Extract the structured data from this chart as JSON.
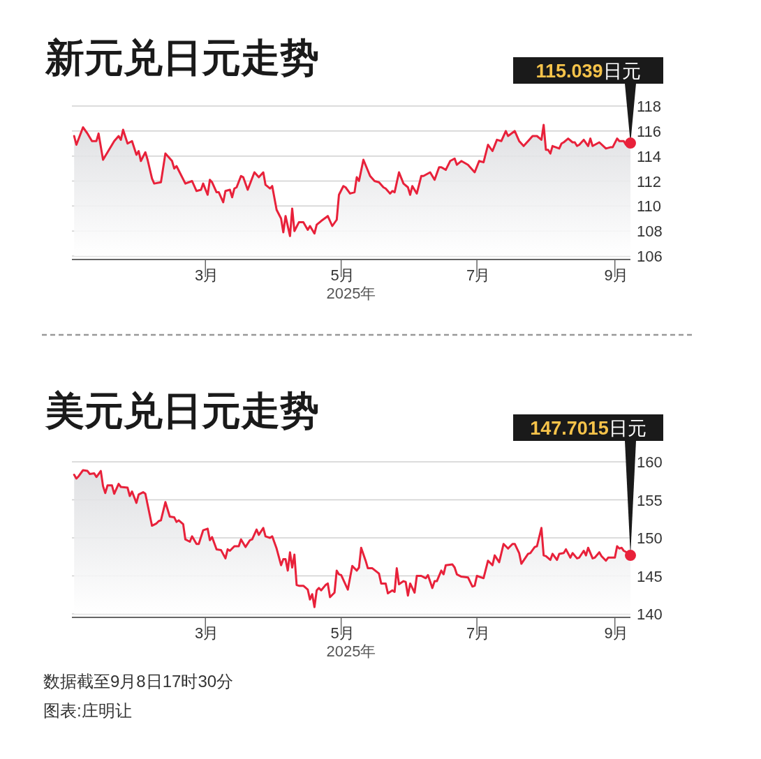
{
  "chart_data": [
    {
      "type": "area",
      "title": "新元兑日元走势",
      "xlabel": "2025年",
      "xlim": [
        "2024-12-31",
        "2025-09-08"
      ],
      "xticks": [
        {
          "value": "2025-03-01",
          "label": "3月"
        },
        {
          "value": "2025-05-01",
          "label": "5月"
        },
        {
          "value": "2025-07-01",
          "label": "7月"
        },
        {
          "value": "2025-09-01",
          "label": "9月"
        }
      ],
      "ylim": [
        106,
        118
      ],
      "yticks": [
        106,
        108,
        110,
        112,
        114,
        116,
        118
      ],
      "grid": "y",
      "annotations": [
        {
          "text": "115.039日元",
          "x": "2025-09-08",
          "y": 115.039
        }
      ],
      "series": [
        {
          "color": "#e8213a",
          "x": [
            "2025-01-01",
            "2025-01-02",
            "2025-01-05",
            "2025-01-07",
            "2025-01-09",
            "2025-01-11",
            "2025-01-12",
            "2025-01-14",
            "2025-01-19",
            "2025-01-21",
            "2025-01-22",
            "2025-01-23",
            "2025-01-25",
            "2025-01-27",
            "2025-01-29",
            "2025-01-30",
            "2025-01-31",
            "2025-02-02",
            "2025-02-03",
            "2025-02-05",
            "2025-02-06",
            "2025-02-09",
            "2025-02-11",
            "2025-02-14",
            "2025-02-15",
            "2025-02-16",
            "2025-02-20",
            "2025-02-23",
            "2025-02-25",
            "2025-02-27",
            "2025-02-28",
            "2025-03-02",
            "2025-03-03",
            "2025-03-04",
            "2025-03-06",
            "2025-03-07",
            "2025-03-09",
            "2025-03-10",
            "2025-03-12",
            "2025-03-13",
            "2025-03-14",
            "2025-03-15",
            "2025-03-17",
            "2025-03-18",
            "2025-03-20",
            "2025-03-23",
            "2025-03-25",
            "2025-03-27",
            "2025-03-28",
            "2025-03-30",
            "2025-03-31",
            "2025-04-02",
            "2025-04-04",
            "2025-04-05",
            "2025-04-06",
            "2025-04-08",
            "2025-04-09",
            "2025-04-10",
            "2025-04-12",
            "2025-04-14",
            "2025-04-16",
            "2025-04-17",
            "2025-04-19",
            "2025-04-20",
            "2025-04-22",
            "2025-04-25",
            "2025-04-27",
            "2025-04-29",
            "2025-04-30",
            "2025-05-02",
            "2025-05-03",
            "2025-05-05",
            "2025-05-07",
            "2025-05-08",
            "2025-05-09",
            "2025-05-11",
            "2025-05-14",
            "2025-05-16",
            "2025-05-18",
            "2025-05-20",
            "2025-05-21",
            "2025-05-23",
            "2025-05-24",
            "2025-05-25",
            "2025-05-27",
            "2025-05-29",
            "2025-05-31",
            "2025-06-01",
            "2025-06-02",
            "2025-06-04",
            "2025-06-06",
            "2025-06-07",
            "2025-06-10",
            "2025-06-12",
            "2025-06-14",
            "2025-06-15",
            "2025-06-17",
            "2025-06-19",
            "2025-06-21",
            "2025-06-22",
            "2025-06-24",
            "2025-06-27",
            "2025-06-30",
            "2025-07-02",
            "2025-07-04",
            "2025-07-06",
            "2025-07-08",
            "2025-07-10",
            "2025-07-12",
            "2025-07-14",
            "2025-07-15",
            "2025-07-18",
            "2025-07-20",
            "2025-07-22",
            "2025-07-24",
            "2025-07-26",
            "2025-07-28",
            "2025-07-30",
            "2025-07-31",
            "2025-08-01",
            "2025-08-02",
            "2025-08-03",
            "2025-08-04",
            "2025-08-07",
            "2025-08-08",
            "2025-08-09",
            "2025-08-11",
            "2025-08-13",
            "2025-08-14",
            "2025-08-15",
            "2025-08-16",
            "2025-08-18",
            "2025-08-20",
            "2025-08-21",
            "2025-08-22",
            "2025-08-25",
            "2025-08-28",
            "2025-08-30",
            "2025-08-31",
            "2025-09-02",
            "2025-09-03",
            "2025-09-05",
            "2025-09-06",
            "2025-09-07",
            "2025-09-08"
          ],
          "values": [
            115.6,
            114.9,
            116.3,
            115.8,
            115.2,
            115.2,
            115.8,
            113.7,
            115.2,
            115.6,
            115.3,
            116.1,
            115.0,
            115.2,
            114.1,
            114.4,
            113.6,
            114.3,
            113.7,
            112.2,
            111.8,
            111.9,
            114.2,
            113.6,
            113.0,
            113.2,
            111.8,
            112.0,
            111.2,
            111.3,
            111.8,
            110.9,
            112.1,
            111.9,
            111.1,
            111.1,
            110.3,
            111.2,
            111.3,
            110.7,
            111.4,
            111.5,
            112.4,
            112.3,
            111.3,
            112.7,
            112.3,
            112.7,
            111.7,
            111.4,
            111.6,
            109.7,
            109.0,
            107.9,
            109.2,
            107.6,
            109.8,
            108.0,
            108.7,
            108.7,
            108.1,
            108.4,
            107.8,
            108.5,
            108.8,
            109.2,
            108.4,
            108.9,
            110.9,
            111.6,
            111.5,
            111.0,
            111.1,
            112.3,
            112.0,
            113.7,
            112.4,
            112.0,
            111.9,
            111.5,
            111.4,
            111.0,
            111.2,
            111.1,
            112.7,
            111.8,
            111.5,
            110.9,
            111.6,
            111.0,
            112.4,
            112.4,
            112.7,
            112.1,
            113.1,
            113.1,
            112.9,
            113.6,
            113.8,
            113.3,
            113.6,
            113.3,
            112.7,
            113.6,
            113.5,
            114.9,
            114.4,
            115.3,
            115.2,
            116.0,
            115.6,
            116.0,
            115.2,
            114.8,
            115.2,
            115.6,
            115.6,
            115.3,
            116.5,
            114.5,
            114.5,
            114.2,
            114.8,
            114.6,
            115.0,
            115.1,
            115.4,
            115.1,
            115.1,
            114.8,
            114.9,
            115.3,
            114.8,
            115.4,
            114.8,
            115.1,
            114.6,
            114.7,
            114.7,
            115.4,
            115.2,
            115.2,
            114.9,
            115.2,
            115.039
          ]
        }
      ]
    },
    {
      "type": "area",
      "title": "美元兑日元走势",
      "xlabel": "2025年",
      "xlim": [
        "2024-12-31",
        "2025-09-08"
      ],
      "xticks": [
        {
          "value": "2025-03-01",
          "label": "3月"
        },
        {
          "value": "2025-05-01",
          "label": "5月"
        },
        {
          "value": "2025-07-01",
          "label": "7月"
        },
        {
          "value": "2025-09-01",
          "label": "9月"
        }
      ],
      "ylim": [
        140,
        160
      ],
      "yticks": [
        140,
        145,
        150,
        155,
        160
      ],
      "grid": "y",
      "annotations": [
        {
          "text": "147.7015日元",
          "x": "2025-09-08",
          "y": 147.7015
        },
        "数据截至9月8日17时30分",
        "图表:庄明让"
      ],
      "series": [
        {
          "color": "#e8213a",
          "x": [
            "2025-01-01",
            "2025-01-02",
            "2025-01-03",
            "2025-01-05",
            "2025-01-07",
            "2025-01-08",
            "2025-01-10",
            "2025-01-11",
            "2025-01-13",
            "2025-01-14",
            "2025-01-15",
            "2025-01-16",
            "2025-01-18",
            "2025-01-19",
            "2025-01-21",
            "2025-01-22",
            "2025-01-25",
            "2025-01-26",
            "2025-01-27",
            "2025-01-29",
            "2025-01-30",
            "2025-02-01",
            "2025-02-02",
            "2025-02-05",
            "2025-02-07",
            "2025-02-08",
            "2025-02-09",
            "2025-02-11",
            "2025-02-13",
            "2025-02-15",
            "2025-02-16",
            "2025-02-17",
            "2025-02-19",
            "2025-02-20",
            "2025-02-22",
            "2025-02-23",
            "2025-02-25",
            "2025-02-26",
            "2025-02-28",
            "2025-03-02",
            "2025-03-03",
            "2025-03-04",
            "2025-03-06",
            "2025-03-08",
            "2025-03-10",
            "2025-03-11",
            "2025-03-12",
            "2025-03-14",
            "2025-03-16",
            "2025-03-17",
            "2025-03-19",
            "2025-03-21",
            "2025-03-22",
            "2025-03-24",
            "2025-03-25",
            "2025-03-27",
            "2025-03-28",
            "2025-03-30",
            "2025-03-31",
            "2025-04-02",
            "2025-04-04",
            "2025-04-05",
            "2025-04-06",
            "2025-04-07",
            "2025-04-08",
            "2025-04-09",
            "2025-04-10",
            "2025-04-11",
            "2025-04-12",
            "2025-04-14",
            "2025-04-16",
            "2025-04-17",
            "2025-04-18",
            "2025-04-19",
            "2025-04-20",
            "2025-04-21",
            "2025-04-22",
            "2025-04-24",
            "2025-04-25",
            "2025-04-26",
            "2025-04-28",
            "2025-04-29",
            "2025-04-30",
            "2025-05-01",
            "2025-05-04",
            "2025-05-06",
            "2025-05-08",
            "2025-05-09",
            "2025-05-10",
            "2025-05-12",
            "2025-05-13",
            "2025-05-15",
            "2025-05-18",
            "2025-05-19",
            "2025-05-21",
            "2025-05-22",
            "2025-05-24",
            "2025-05-25",
            "2025-05-26",
            "2025-05-27",
            "2025-05-29",
            "2025-05-30",
            "2025-05-31",
            "2025-06-01",
            "2025-06-03",
            "2025-06-04",
            "2025-06-06",
            "2025-06-08",
            "2025-06-09",
            "2025-06-11",
            "2025-06-12",
            "2025-06-13",
            "2025-06-15",
            "2025-06-16",
            "2025-06-17",
            "2025-06-20",
            "2025-06-21",
            "2025-06-22",
            "2025-06-24",
            "2025-06-27",
            "2025-06-29",
            "2025-06-30",
            "2025-07-01",
            "2025-07-04",
            "2025-07-06",
            "2025-07-08",
            "2025-07-09",
            "2025-07-11",
            "2025-07-13",
            "2025-07-15",
            "2025-07-17",
            "2025-07-18",
            "2025-07-20",
            "2025-07-21",
            "2025-07-24",
            "2025-07-25",
            "2025-07-27",
            "2025-07-28",
            "2025-07-30",
            "2025-07-31",
            "2025-08-01",
            "2025-08-03",
            "2025-08-04",
            "2025-08-06",
            "2025-08-07",
            "2025-08-09",
            "2025-08-10",
            "2025-08-12",
            "2025-08-13",
            "2025-08-15",
            "2025-08-16",
            "2025-08-18",
            "2025-08-19",
            "2025-08-20",
            "2025-08-22",
            "2025-08-23",
            "2025-08-25",
            "2025-08-26",
            "2025-08-28",
            "2025-08-29",
            "2025-09-01",
            "2025-09-02",
            "2025-09-03",
            "2025-09-04",
            "2025-09-05",
            "2025-09-07",
            "2025-09-08"
          ],
          "values": [
            158.3,
            157.8,
            158.1,
            158.9,
            158.8,
            158.4,
            158.5,
            158.0,
            158.8,
            156.8,
            155.9,
            156.9,
            156.9,
            155.8,
            157.1,
            156.7,
            156.6,
            155.5,
            156.1,
            154.6,
            155.7,
            156.0,
            155.8,
            151.6,
            151.9,
            152.2,
            152.3,
            154.7,
            152.8,
            152.7,
            152.1,
            152.3,
            151.8,
            149.8,
            149.5,
            150.2,
            149.2,
            149.2,
            151.0,
            151.2,
            149.7,
            150.1,
            148.5,
            148.4,
            147.3,
            148.5,
            148.3,
            148.9,
            148.9,
            149.8,
            148.8,
            149.7,
            149.8,
            151.1,
            150.4,
            151.3,
            150.2,
            150.0,
            150.2,
            148.6,
            146.4,
            147.2,
            147.2,
            145.7,
            148.1,
            146.1,
            147.8,
            143.8,
            143.7,
            143.7,
            143.2,
            141.9,
            142.6,
            140.9,
            143.1,
            143.4,
            143.1,
            143.8,
            144.0,
            142.2,
            142.8,
            145.7,
            145.2,
            145.1,
            143.2,
            146.3,
            145.7,
            146.1,
            148.7,
            147.0,
            146.0,
            146.0,
            145.3,
            144.0,
            144.0,
            142.7,
            143.1,
            142.9,
            146.0,
            143.9,
            144.3,
            144.2,
            142.4,
            144.0,
            142.8,
            145.0,
            145.0,
            144.7,
            145.1,
            143.4,
            144.3,
            144.3,
            145.7,
            145.2,
            146.4,
            146.5,
            146.1,
            145.2,
            144.9,
            144.8,
            143.6,
            143.7,
            145.0,
            144.7,
            147.0,
            146.4,
            147.7,
            146.8,
            149.2,
            148.6,
            149.2,
            149.2,
            148.0,
            146.6,
            147.9,
            148.0,
            148.8,
            148.9,
            151.3,
            147.7,
            147.6,
            147.1,
            147.9,
            147.1,
            147.9,
            148.0,
            148.5,
            147.4,
            148.0,
            147.3,
            147.4,
            148.3,
            147.7,
            148.7,
            147.3,
            147.4,
            148.1,
            147.6,
            147.0,
            147.4,
            147.4,
            148.9,
            148.6,
            148.7,
            148.3,
            148.0,
            147.7015
          ]
        }
      ]
    }
  ]
}
